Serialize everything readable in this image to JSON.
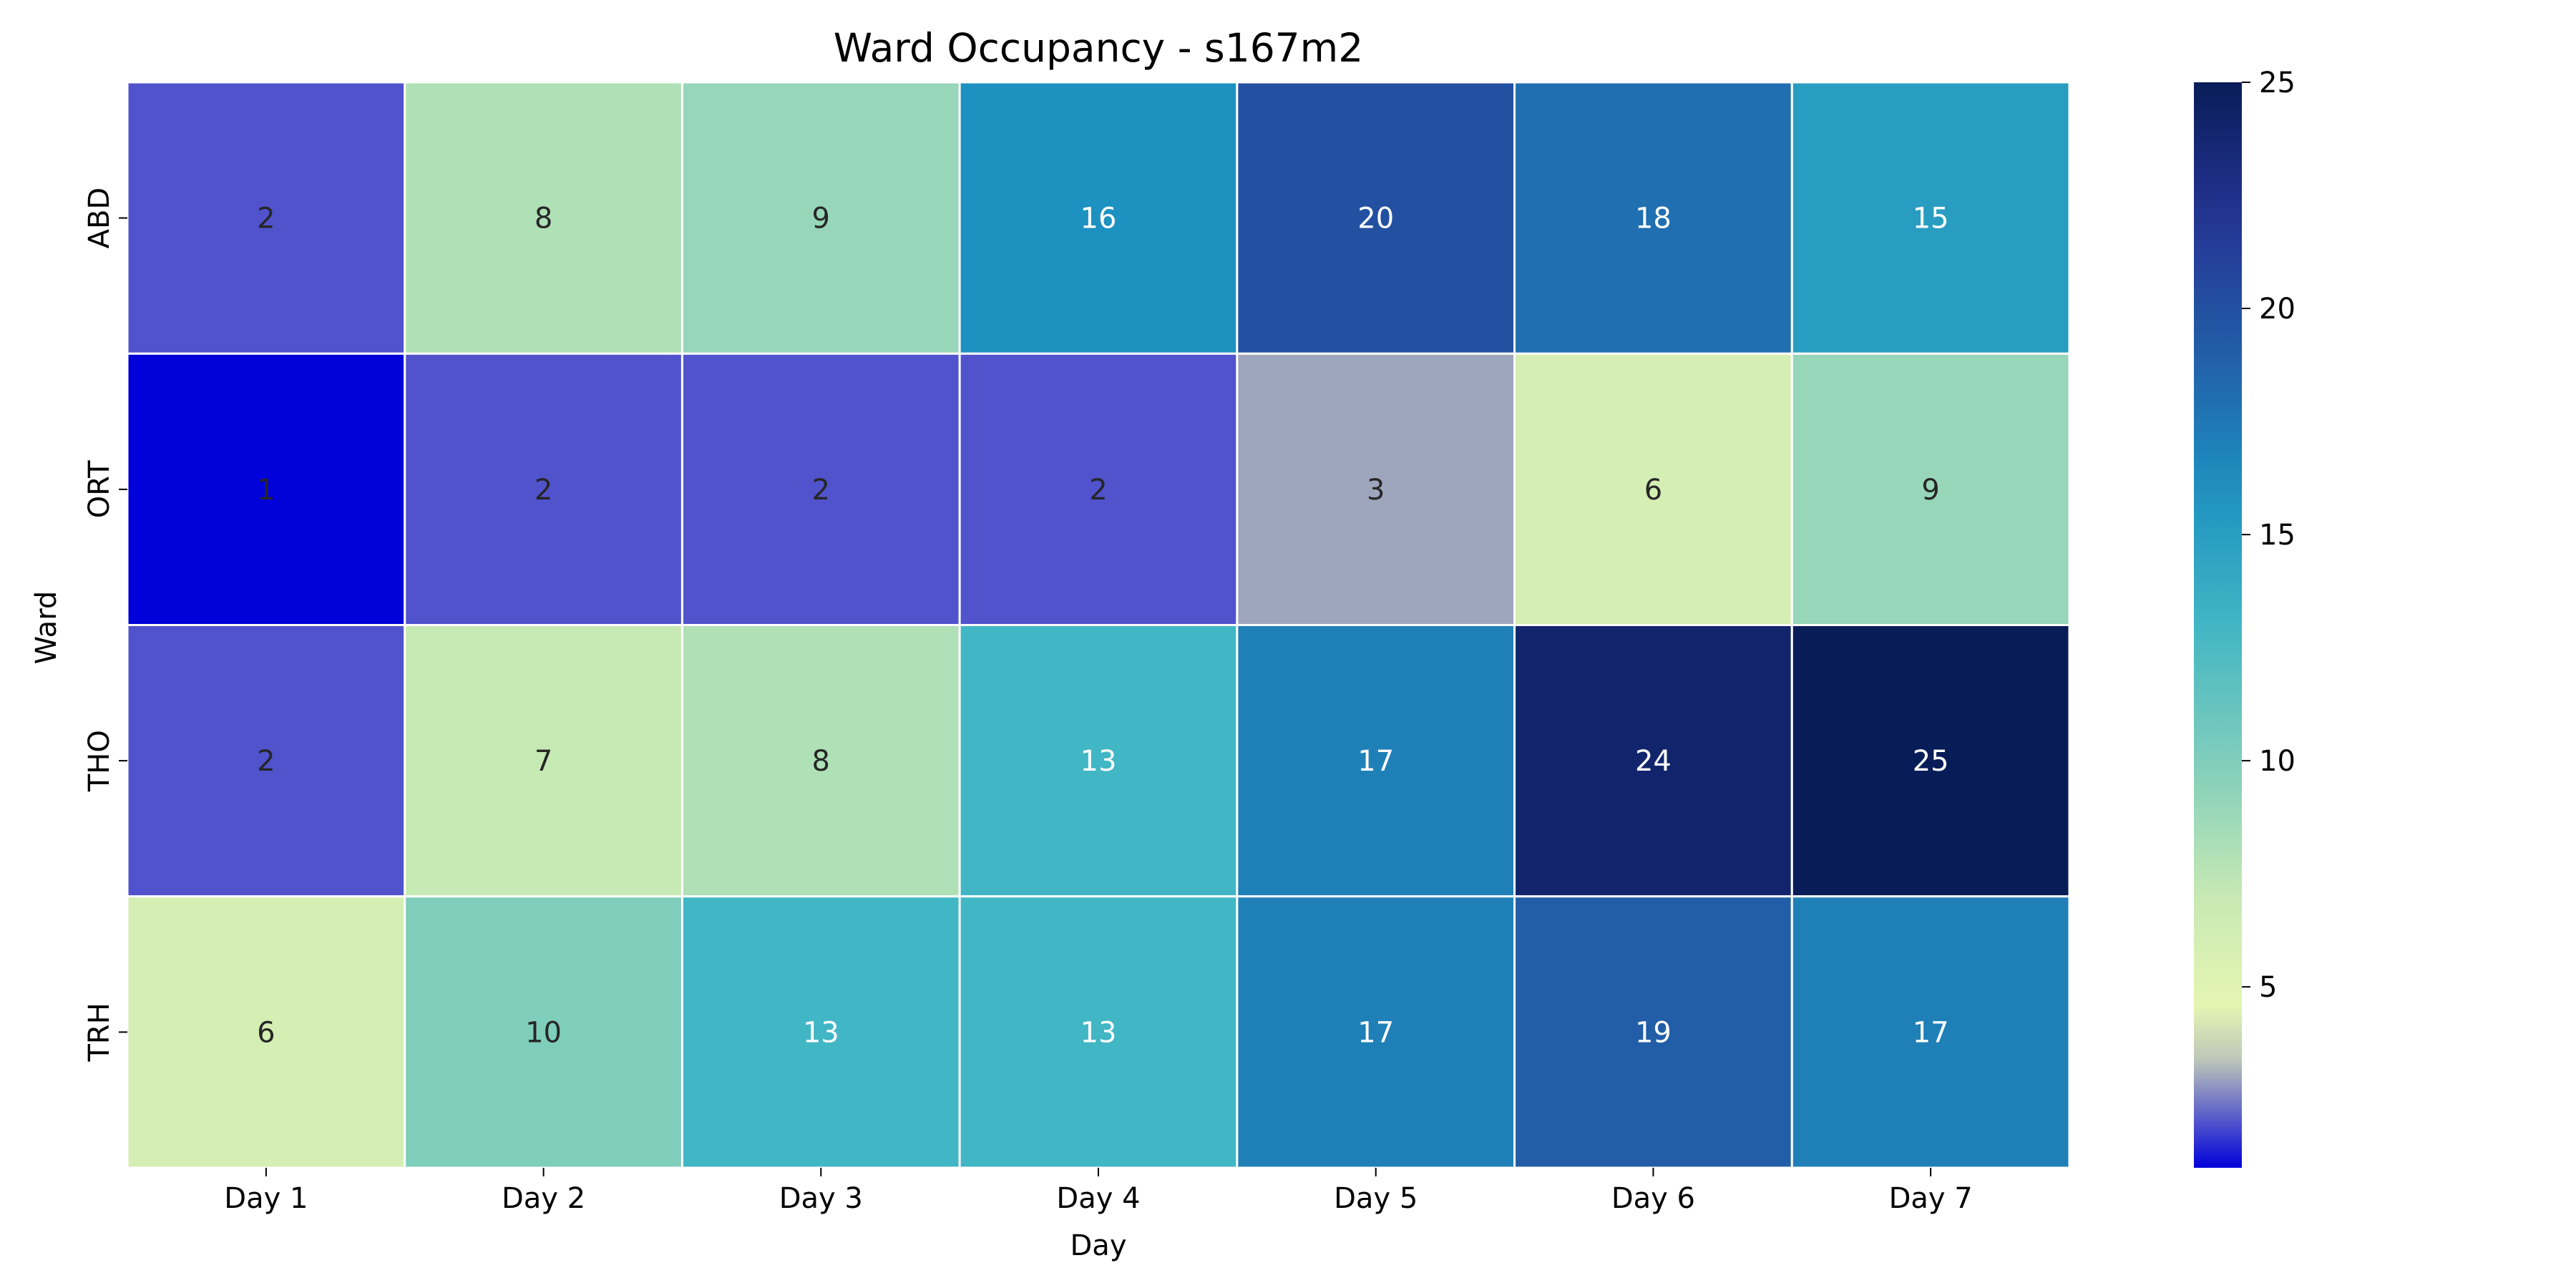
{
  "chart_data": {
    "type": "heatmap",
    "title": "Ward Occupancy - s167m2",
    "xlabel": "Day",
    "ylabel": "Ward",
    "x_categories": [
      "Day 1",
      "Day 2",
      "Day 3",
      "Day 4",
      "Day 5",
      "Day 6",
      "Day 7"
    ],
    "y_categories": [
      "ABD",
      "ORT",
      "THO",
      "TRH"
    ],
    "values": [
      [
        2,
        8,
        9,
        16,
        20,
        18,
        15
      ],
      [
        1,
        2,
        2,
        2,
        3,
        6,
        9
      ],
      [
        2,
        7,
        8,
        13,
        17,
        24,
        25
      ],
      [
        6,
        10,
        13,
        13,
        17,
        19,
        17
      ]
    ],
    "colorbar": {
      "min": 1,
      "max": 25,
      "ticks": [
        5,
        10,
        15,
        20,
        25
      ],
      "colormap": "YlGnBu"
    },
    "annotations": true,
    "grid": false
  }
}
